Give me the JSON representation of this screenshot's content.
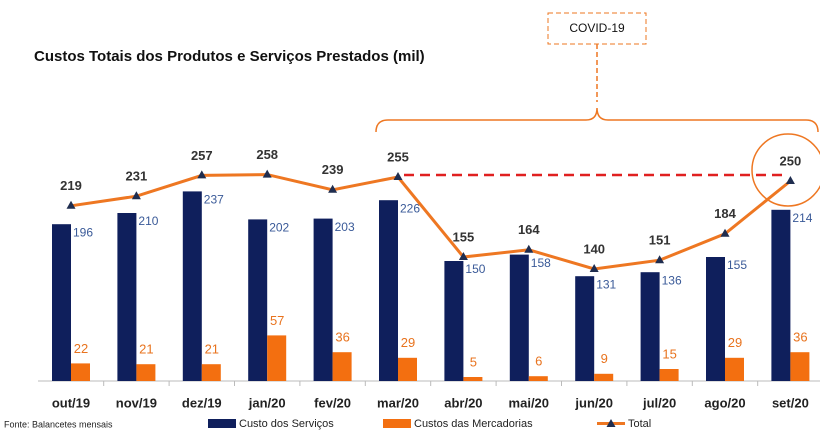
{
  "chart_data": {
    "type": "bar",
    "title": "Custos Totais dos Produtos e Serviços Prestados (mil)",
    "annotation": "COVID-19",
    "source": "Fonte: Balancetes mensais",
    "categories": [
      "out/19",
      "nov/19",
      "dez/19",
      "jan/20",
      "fev/20",
      "mar/20",
      "abr/20",
      "mai/20",
      "jun/20",
      "jul/20",
      "ago/20",
      "set/20"
    ],
    "series": [
      {
        "name": "Custo dos Serviços",
        "type": "bar",
        "color": "#0f1f5c",
        "label_color": "#3a5a98",
        "values": [
          196,
          210,
          237,
          202,
          203,
          226,
          150,
          158,
          131,
          136,
          155,
          214
        ]
      },
      {
        "name": "Custos das Mercadorias",
        "type": "bar",
        "color": "#f36f10",
        "label_color": "#e8731e",
        "values": [
          22,
          21,
          21,
          57,
          36,
          29,
          5,
          6,
          9,
          15,
          29,
          36
        ]
      },
      {
        "name": "Total",
        "type": "line",
        "color": "#ee7722",
        "marker_color": "#1f2d4f",
        "values": [
          219,
          231,
          257,
          258,
          239,
          255,
          155,
          164,
          140,
          151,
          184,
          250
        ]
      }
    ]
  }
}
